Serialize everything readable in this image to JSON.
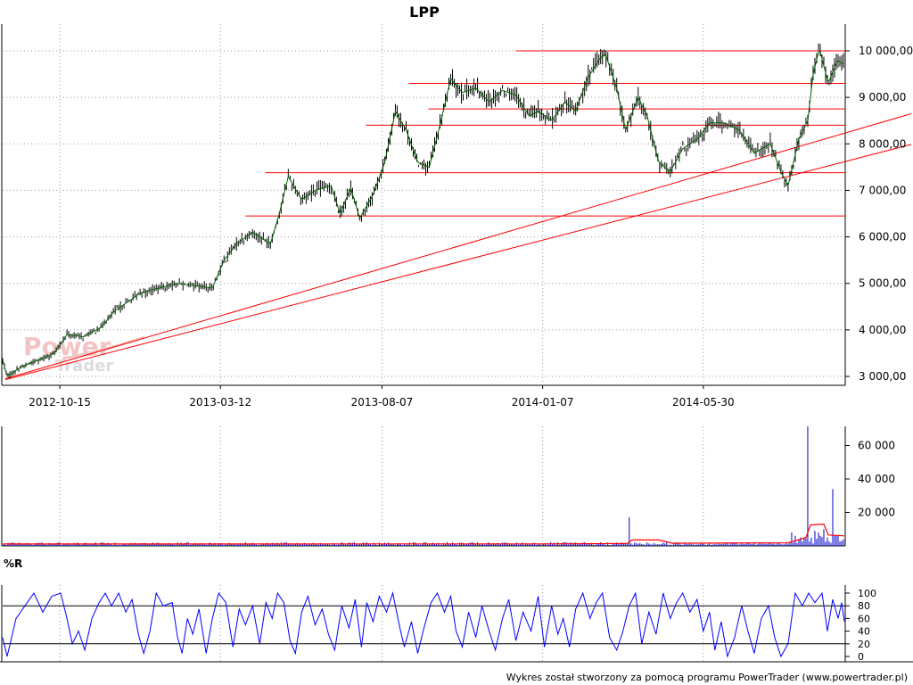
{
  "chart_data": [
    {
      "type": "line",
      "title": "LPP",
      "x_ticks": [
        "2012-10-15",
        "2013-03-12",
        "2013-08-07",
        "2014-01-07",
        "2014-05-30"
      ],
      "y_ticks": [
        "3 000,00",
        "4 000,00",
        "5 000,00",
        "6 000,00",
        "7 000,00",
        "8 000,00",
        "9 000,00",
        "10 000,00"
      ],
      "ylim": [
        2900,
        10200
      ],
      "grid": true,
      "price_path": [
        [
          0,
          3350
        ],
        [
          5,
          3000
        ],
        [
          20,
          3200
        ],
        [
          40,
          3350
        ],
        [
          58,
          3500
        ],
        [
          72,
          3900
        ],
        [
          90,
          3850
        ],
        [
          110,
          4050
        ],
        [
          125,
          4400
        ],
        [
          140,
          4600
        ],
        [
          155,
          4800
        ],
        [
          175,
          4900
        ],
        [
          195,
          5000
        ],
        [
          215,
          4950
        ],
        [
          235,
          4900
        ],
        [
          248,
          5500
        ],
        [
          262,
          5850
        ],
        [
          280,
          6100
        ],
        [
          300,
          5850
        ],
        [
          310,
          6500
        ],
        [
          320,
          7300
        ],
        [
          335,
          6800
        ],
        [
          350,
          7000
        ],
        [
          368,
          7100
        ],
        [
          378,
          6500
        ],
        [
          390,
          7050
        ],
        [
          400,
          6400
        ],
        [
          415,
          6900
        ],
        [
          428,
          7600
        ],
        [
          440,
          8700
        ],
        [
          452,
          8300
        ],
        [
          465,
          7600
        ],
        [
          478,
          7500
        ],
        [
          490,
          8400
        ],
        [
          502,
          9400
        ],
        [
          515,
          9100
        ],
        [
          530,
          9200
        ],
        [
          545,
          8900
        ],
        [
          560,
          9150
        ],
        [
          575,
          9050
        ],
        [
          590,
          8600
        ],
        [
          600,
          8700
        ],
        [
          615,
          8500
        ],
        [
          630,
          8900
        ],
        [
          642,
          8700
        ],
        [
          655,
          9400
        ],
        [
          668,
          9800
        ],
        [
          675,
          9950
        ],
        [
          688,
          9200
        ],
        [
          698,
          8300
        ],
        [
          712,
          9000
        ],
        [
          722,
          8600
        ],
        [
          735,
          7600
        ],
        [
          748,
          7400
        ],
        [
          762,
          7900
        ],
        [
          778,
          8100
        ],
        [
          792,
          8450
        ],
        [
          808,
          8450
        ],
        [
          825,
          8300
        ],
        [
          842,
          7800
        ],
        [
          860,
          8000
        ],
        [
          872,
          7400
        ],
        [
          880,
          7100
        ],
        [
          892,
          8100
        ],
        [
          902,
          8500
        ],
        [
          908,
          9500
        ],
        [
          915,
          10050
        ],
        [
          925,
          9300
        ],
        [
          935,
          9800
        ],
        [
          943,
          9700
        ]
      ],
      "support_levels": [
        {
          "price": 10000,
          "from_date_index": 575
        },
        {
          "price": 9300,
          "from_date_index": 455
        },
        {
          "price": 8750,
          "from_date_index": 477
        },
        {
          "price": 8400,
          "from_date_index": 407
        },
        {
          "price": 7380,
          "from_date_index": 294
        },
        {
          "price": 6450,
          "from_date_index": 272
        }
      ],
      "trend_lines": [
        {
          "from": [
            3,
            2950
          ],
          "to": [
            948,
            8150
          ]
        },
        {
          "from": [
            3,
            2930
          ],
          "to": [
            948,
            7490
          ]
        }
      ]
    },
    {
      "type": "bar",
      "y_ticks": [
        "20 000",
        "40 000",
        "60 000"
      ],
      "ylim": [
        0,
        73000
      ],
      "baseline": 1200,
      "spikes": [
        {
          "i": 703,
          "v": 17000
        },
        {
          "i": 884,
          "v": 8000
        },
        {
          "i": 888,
          "v": 6000
        },
        {
          "i": 895,
          "v": 5000
        },
        {
          "i": 900,
          "v": 4500
        },
        {
          "i": 903,
          "v": 72000
        },
        {
          "i": 910,
          "v": 9000
        },
        {
          "i": 915,
          "v": 8000
        },
        {
          "i": 920,
          "v": 10000
        },
        {
          "i": 925,
          "v": 5000
        },
        {
          "i": 930,
          "v": 34000
        },
        {
          "i": 936,
          "v": 6000
        }
      ],
      "average_line": [
        [
          0,
          1100
        ],
        [
          200,
          1100
        ],
        [
          400,
          1200
        ],
        [
          600,
          1200
        ],
        [
          700,
          1400
        ],
        [
          705,
          3500
        ],
        [
          735,
          3500
        ],
        [
          750,
          1600
        ],
        [
          880,
          1800
        ],
        [
          900,
          5000
        ],
        [
          905,
          12500
        ],
        [
          920,
          13000
        ],
        [
          925,
          6500
        ],
        [
          943,
          6000
        ]
      ]
    },
    {
      "type": "line",
      "title": "%R",
      "y_ticks": [
        "0",
        "20",
        "40",
        "60",
        "80",
        "100"
      ],
      "ylim": [
        0,
        100
      ],
      "reference_lines": [
        20,
        80
      ],
      "series": [
        {
          "values": [
            [
              0,
              30
            ],
            [
              5,
              0
            ],
            [
              15,
              60
            ],
            [
              25,
              80
            ],
            [
              35,
              100
            ],
            [
              45,
              70
            ],
            [
              55,
              95
            ],
            [
              65,
              100
            ],
            [
              72,
              60
            ],
            [
              78,
              20
            ],
            [
              85,
              40
            ],
            [
              92,
              10
            ],
            [
              100,
              60
            ],
            [
              108,
              85
            ],
            [
              115,
              100
            ],
            [
              122,
              80
            ],
            [
              130,
              100
            ],
            [
              138,
              70
            ],
            [
              145,
              90
            ],
            [
              152,
              35
            ],
            [
              158,
              5
            ],
            [
              165,
              40
            ],
            [
              172,
              100
            ],
            [
              180,
              80
            ],
            [
              190,
              85
            ],
            [
              196,
              30
            ],
            [
              201,
              5
            ],
            [
              207,
              60
            ],
            [
              213,
              35
            ],
            [
              220,
              75
            ],
            [
              228,
              5
            ],
            [
              235,
              60
            ],
            [
              242,
              100
            ],
            [
              250,
              85
            ],
            [
              258,
              15
            ],
            [
              265,
              75
            ],
            [
              272,
              50
            ],
            [
              280,
              80
            ],
            [
              288,
              20
            ],
            [
              295,
              85
            ],
            [
              302,
              60
            ],
            [
              308,
              100
            ],
            [
              315,
              85
            ],
            [
              322,
              25
            ],
            [
              328,
              5
            ],
            [
              335,
              70
            ],
            [
              342,
              95
            ],
            [
              350,
              50
            ],
            [
              358,
              75
            ],
            [
              365,
              35
            ],
            [
              372,
              10
            ],
            [
              380,
              80
            ],
            [
              388,
              45
            ],
            [
              395,
              90
            ],
            [
              402,
              15
            ],
            [
              408,
              85
            ],
            [
              415,
              55
            ],
            [
              422,
              95
            ],
            [
              430,
              70
            ],
            [
              437,
              100
            ],
            [
              445,
              45
            ],
            [
              450,
              15
            ],
            [
              458,
              55
            ],
            [
              465,
              5
            ],
            [
              472,
              45
            ],
            [
              480,
              85
            ],
            [
              487,
              100
            ],
            [
              495,
              70
            ],
            [
              502,
              95
            ],
            [
              508,
              40
            ],
            [
              515,
              15
            ],
            [
              522,
              70
            ],
            [
              530,
              30
            ],
            [
              537,
              80
            ],
            [
              545,
              40
            ],
            [
              552,
              10
            ],
            [
              560,
              60
            ],
            [
              567,
              90
            ],
            [
              575,
              25
            ],
            [
              583,
              70
            ],
            [
              592,
              40
            ],
            [
              600,
              95
            ],
            [
              607,
              15
            ],
            [
              615,
              80
            ],
            [
              622,
              35
            ],
            [
              628,
              60
            ],
            [
              635,
              15
            ],
            [
              642,
              75
            ],
            [
              650,
              100
            ],
            [
              658,
              60
            ],
            [
              665,
              85
            ],
            [
              672,
              100
            ],
            [
              680,
              30
            ],
            [
              688,
              10
            ],
            [
              695,
              40
            ],
            [
              702,
              80
            ],
            [
              709,
              100
            ],
            [
              716,
              20
            ],
            [
              724,
              70
            ],
            [
              732,
              35
            ],
            [
              740,
              100
            ],
            [
              748,
              60
            ],
            [
              755,
              85
            ],
            [
              762,
              100
            ],
            [
              770,
              70
            ],
            [
              778,
              90
            ],
            [
              785,
              40
            ],
            [
              792,
              70
            ],
            [
              798,
              10
            ],
            [
              805,
              55
            ],
            [
              812,
              0
            ],
            [
              820,
              30
            ],
            [
              828,
              80
            ],
            [
              835,
              40
            ],
            [
              842,
              5
            ],
            [
              850,
              60
            ],
            [
              858,
              80
            ],
            [
              865,
              30
            ],
            [
              872,
              0
            ],
            [
              880,
              20
            ],
            [
              888,
              100
            ],
            [
              896,
              80
            ],
            [
              903,
              100
            ],
            [
              910,
              85
            ],
            [
              918,
              100
            ],
            [
              924,
              40
            ],
            [
              930,
              90
            ],
            [
              936,
              60
            ],
            [
              940,
              85
            ],
            [
              943,
              55
            ]
          ]
        }
      ]
    }
  ],
  "watermark": {
    "line1": "Power",
    "line2": "Trader"
  },
  "credit": "Wykres został stworzony za pomocą programu PowerTrader (www.powertrader.pl)",
  "colors": {
    "candle": "#000000",
    "trend": "#006400",
    "support": "#ff0000",
    "volume": "#0000cc",
    "volume_average": "#ff0000",
    "oscillator": "#0000ff",
    "reference": "#000000",
    "grid": "#9a9a9a"
  }
}
